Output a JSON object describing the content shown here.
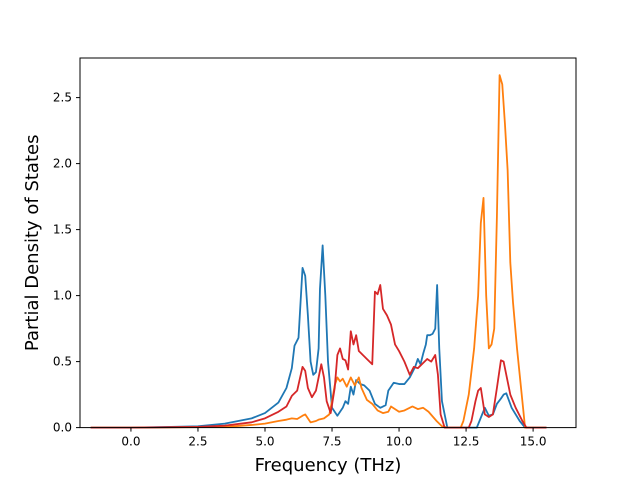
{
  "chart_data": {
    "type": "line",
    "title": "",
    "xlabel": "Frequency (THz)",
    "ylabel": "Partial Density of States",
    "xlim": [
      -1.9,
      16.6
    ],
    "ylim": [
      0,
      2.8
    ],
    "xticks": [
      0.0,
      2.5,
      5.0,
      7.5,
      10.0,
      12.5,
      15.0
    ],
    "xtick_labels": [
      "0.0",
      "2.5",
      "5.0",
      "7.5",
      "10.0",
      "12.5",
      "15.0"
    ],
    "yticks": [
      0.0,
      0.5,
      1.0,
      1.5,
      2.0,
      2.5
    ],
    "ytick_labels": [
      "0.0",
      "0.5",
      "1.0",
      "1.5",
      "2.0",
      "2.5"
    ],
    "grid": false,
    "series": [
      {
        "color": "#1f77b4",
        "points": [
          [
            -1.5,
            0
          ],
          [
            0,
            0
          ],
          [
            1.5,
            0.005
          ],
          [
            2.5,
            0.01
          ],
          [
            3.5,
            0.03
          ],
          [
            4.5,
            0.07
          ],
          [
            5.0,
            0.11
          ],
          [
            5.5,
            0.19
          ],
          [
            5.8,
            0.3
          ],
          [
            6.0,
            0.45
          ],
          [
            6.1,
            0.62
          ],
          [
            6.25,
            0.68
          ],
          [
            6.4,
            1.21
          ],
          [
            6.5,
            1.15
          ],
          [
            6.6,
            0.85
          ],
          [
            6.7,
            0.5
          ],
          [
            6.8,
            0.4
          ],
          [
            6.9,
            0.42
          ],
          [
            7.0,
            0.6
          ],
          [
            7.05,
            1.05
          ],
          [
            7.15,
            1.38
          ],
          [
            7.25,
            1.0
          ],
          [
            7.35,
            0.5
          ],
          [
            7.5,
            0.15
          ],
          [
            7.7,
            0.09
          ],
          [
            7.9,
            0.15
          ],
          [
            8.0,
            0.2
          ],
          [
            8.1,
            0.18
          ],
          [
            8.2,
            0.31
          ],
          [
            8.3,
            0.25
          ],
          [
            8.4,
            0.36
          ],
          [
            8.55,
            0.33
          ],
          [
            8.7,
            0.32
          ],
          [
            8.9,
            0.28
          ],
          [
            9.1,
            0.18
          ],
          [
            9.3,
            0.15
          ],
          [
            9.5,
            0.17
          ],
          [
            9.6,
            0.28
          ],
          [
            9.8,
            0.34
          ],
          [
            10.0,
            0.33
          ],
          [
            10.2,
            0.33
          ],
          [
            10.4,
            0.38
          ],
          [
            10.6,
            0.46
          ],
          [
            10.7,
            0.52
          ],
          [
            10.8,
            0.48
          ],
          [
            10.9,
            0.56
          ],
          [
            11.0,
            0.63
          ],
          [
            11.05,
            0.7
          ],
          [
            11.15,
            0.7
          ],
          [
            11.25,
            0.71
          ],
          [
            11.35,
            0.75
          ],
          [
            11.42,
            1.08
          ],
          [
            11.5,
            0.6
          ],
          [
            11.6,
            0.2
          ],
          [
            11.8,
            0.0
          ],
          [
            12.9,
            0.0
          ],
          [
            13.0,
            0.05
          ],
          [
            13.1,
            0.1
          ],
          [
            13.2,
            0.15
          ],
          [
            13.35,
            0.09
          ],
          [
            13.5,
            0.1
          ],
          [
            13.65,
            0.18
          ],
          [
            13.8,
            0.22
          ],
          [
            13.9,
            0.25
          ],
          [
            14.0,
            0.26
          ],
          [
            14.2,
            0.15
          ],
          [
            14.5,
            0.05
          ],
          [
            14.7,
            0.0
          ],
          [
            15.5,
            0.0
          ]
        ]
      },
      {
        "color": "#ff7f0e",
        "points": [
          [
            -1.5,
            0
          ],
          [
            0,
            0
          ],
          [
            3.5,
            0.005
          ],
          [
            4.5,
            0.02
          ],
          [
            5.0,
            0.03
          ],
          [
            5.5,
            0.05
          ],
          [
            5.8,
            0.06
          ],
          [
            6.0,
            0.07
          ],
          [
            6.2,
            0.065
          ],
          [
            6.4,
            0.09
          ],
          [
            6.5,
            0.1
          ],
          [
            6.7,
            0.04
          ],
          [
            6.9,
            0.05
          ],
          [
            7.0,
            0.06
          ],
          [
            7.2,
            0.07
          ],
          [
            7.4,
            0.1
          ],
          [
            7.5,
            0.2
          ],
          [
            7.6,
            0.32
          ],
          [
            7.7,
            0.38
          ],
          [
            7.8,
            0.35
          ],
          [
            7.9,
            0.37
          ],
          [
            8.05,
            0.31
          ],
          [
            8.2,
            0.38
          ],
          [
            8.35,
            0.32
          ],
          [
            8.5,
            0.38
          ],
          [
            8.6,
            0.3
          ],
          [
            8.8,
            0.21
          ],
          [
            9.0,
            0.18
          ],
          [
            9.2,
            0.13
          ],
          [
            9.4,
            0.11
          ],
          [
            9.6,
            0.12
          ],
          [
            9.7,
            0.16
          ],
          [
            9.85,
            0.14
          ],
          [
            10.0,
            0.12
          ],
          [
            10.2,
            0.13
          ],
          [
            10.5,
            0.16
          ],
          [
            10.7,
            0.14
          ],
          [
            10.9,
            0.15
          ],
          [
            11.1,
            0.12
          ],
          [
            11.4,
            0.05
          ],
          [
            11.6,
            0.01
          ],
          [
            11.8,
            0.0
          ],
          [
            12.3,
            0.0
          ],
          [
            12.4,
            0.05
          ],
          [
            12.6,
            0.25
          ],
          [
            12.8,
            0.6
          ],
          [
            12.95,
            1.0
          ],
          [
            13.05,
            1.55
          ],
          [
            13.15,
            1.74
          ],
          [
            13.25,
            1.0
          ],
          [
            13.35,
            0.6
          ],
          [
            13.45,
            0.63
          ],
          [
            13.55,
            0.75
          ],
          [
            13.65,
            1.6
          ],
          [
            13.75,
            2.67
          ],
          [
            13.85,
            2.6
          ],
          [
            13.95,
            2.3
          ],
          [
            14.05,
            1.95
          ],
          [
            14.15,
            1.25
          ],
          [
            14.25,
            0.95
          ],
          [
            14.4,
            0.6
          ],
          [
            14.6,
            0.2
          ],
          [
            14.7,
            0.0
          ],
          [
            15.5,
            0.0
          ]
        ]
      },
      {
        "color": "#d62728",
        "points": [
          [
            -1.5,
            0
          ],
          [
            0,
            0
          ],
          [
            2.5,
            0.005
          ],
          [
            3.5,
            0.015
          ],
          [
            4.5,
            0.04
          ],
          [
            5.0,
            0.07
          ],
          [
            5.5,
            0.12
          ],
          [
            5.8,
            0.16
          ],
          [
            6.0,
            0.24
          ],
          [
            6.2,
            0.28
          ],
          [
            6.4,
            0.46
          ],
          [
            6.5,
            0.43
          ],
          [
            6.6,
            0.3
          ],
          [
            6.75,
            0.23
          ],
          [
            6.9,
            0.28
          ],
          [
            7.0,
            0.38
          ],
          [
            7.1,
            0.48
          ],
          [
            7.2,
            0.38
          ],
          [
            7.3,
            0.2
          ],
          [
            7.45,
            0.11
          ],
          [
            7.6,
            0.3
          ],
          [
            7.7,
            0.55
          ],
          [
            7.8,
            0.6
          ],
          [
            7.9,
            0.52
          ],
          [
            8.0,
            0.51
          ],
          [
            8.1,
            0.44
          ],
          [
            8.2,
            0.73
          ],
          [
            8.3,
            0.63
          ],
          [
            8.4,
            0.7
          ],
          [
            8.5,
            0.58
          ],
          [
            8.65,
            0.55
          ],
          [
            8.8,
            0.52
          ],
          [
            9.0,
            0.48
          ],
          [
            9.1,
            1.03
          ],
          [
            9.2,
            1.01
          ],
          [
            9.3,
            1.08
          ],
          [
            9.4,
            0.9
          ],
          [
            9.55,
            0.85
          ],
          [
            9.7,
            0.78
          ],
          [
            9.85,
            0.63
          ],
          [
            10.0,
            0.58
          ],
          [
            10.2,
            0.5
          ],
          [
            10.4,
            0.4
          ],
          [
            10.55,
            0.46
          ],
          [
            10.7,
            0.45
          ],
          [
            10.8,
            0.47
          ],
          [
            10.95,
            0.5
          ],
          [
            11.05,
            0.52
          ],
          [
            11.2,
            0.5
          ],
          [
            11.35,
            0.55
          ],
          [
            11.45,
            0.4
          ],
          [
            11.55,
            0.1
          ],
          [
            11.7,
            0.0
          ],
          [
            12.6,
            0.0
          ],
          [
            12.7,
            0.05
          ],
          [
            12.85,
            0.2
          ],
          [
            12.95,
            0.28
          ],
          [
            13.05,
            0.3
          ],
          [
            13.2,
            0.1
          ],
          [
            13.35,
            0.08
          ],
          [
            13.5,
            0.1
          ],
          [
            13.65,
            0.3
          ],
          [
            13.8,
            0.51
          ],
          [
            13.9,
            0.5
          ],
          [
            14.0,
            0.4
          ],
          [
            14.15,
            0.25
          ],
          [
            14.35,
            0.15
          ],
          [
            14.6,
            0.05
          ],
          [
            14.75,
            0.0
          ],
          [
            15.5,
            0.0
          ]
        ]
      }
    ]
  }
}
